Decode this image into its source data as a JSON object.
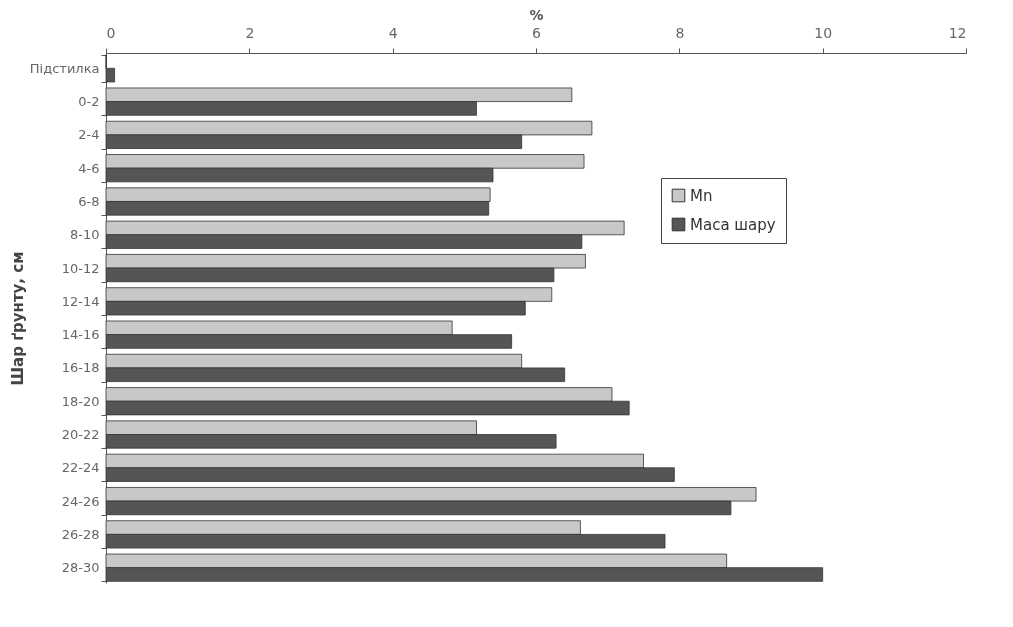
{
  "chart_data": {
    "type": "bar",
    "orientation": "horizontal",
    "xlabel": "%",
    "ylabel": "Шар ґрунту, см",
    "categories": [
      "Підстилка",
      "0-2",
      "2-4",
      "4-6",
      "6-8",
      "8-10",
      "10-12",
      "12-14",
      "14-16",
      "16-18",
      "18-20",
      "20-22",
      "22-24",
      "24-26",
      "26-28",
      "28-30"
    ],
    "series": [
      {
        "name": "Mn",
        "color": "#c8c8c8",
        "values": [
          0,
          6.5,
          6.78,
          6.67,
          5.36,
          7.23,
          6.69,
          6.22,
          4.83,
          5.8,
          7.06,
          5.17,
          7.5,
          9.07,
          6.62,
          8.66
        ]
      },
      {
        "name": "Маса шару",
        "color": "#555555",
        "values": [
          0.12,
          5.17,
          5.8,
          5.4,
          5.34,
          6.64,
          6.25,
          5.85,
          5.66,
          6.4,
          7.3,
          6.28,
          7.93,
          8.72,
          7.8,
          10.0
        ]
      }
    ],
    "xlim": [
      0,
      12
    ],
    "xticks": [
      0,
      2,
      4,
      6,
      8,
      10,
      12
    ],
    "grid": false,
    "legend": "top right"
  }
}
